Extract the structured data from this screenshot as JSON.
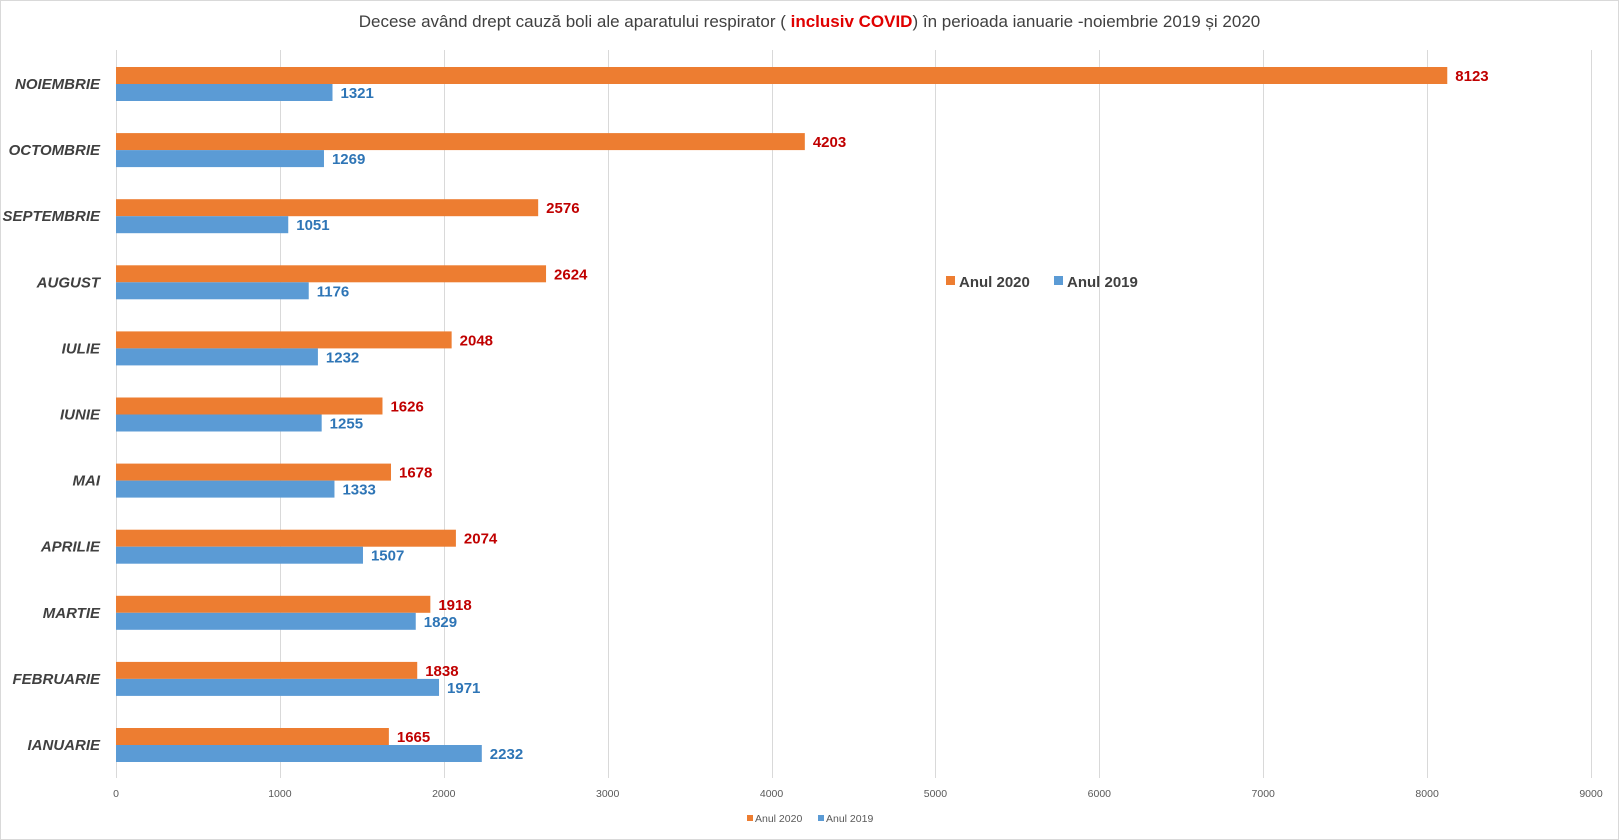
{
  "chart_data": {
    "type": "bar",
    "orientation": "horizontal",
    "title": {
      "prefix": "Decese având drept cauză boli ale aparatului respirator ( ",
      "highlight": "inclusiv COVID",
      "suffix": ") în perioada ianuarie -noiembrie 2019 și 2020"
    },
    "categories": [
      "IANUARIE",
      "FEBRUARIE",
      "MARTIE",
      "APRILIE",
      "MAI",
      "IUNIE",
      "IULIE",
      "AUGUST",
      "SEPTEMBRIE",
      "OCTOMBRIE",
      "NOIEMBRIE"
    ],
    "series": [
      {
        "name": "Anul 2020",
        "color": "#ed7d31",
        "label_color": "#c00000",
        "values": [
          1665,
          1838,
          1918,
          2074,
          1678,
          1626,
          2048,
          2624,
          2576,
          4203,
          8123
        ]
      },
      {
        "name": "Anul 2019",
        "color": "#5b9bd5",
        "label_color": "#2e75b6",
        "values": [
          2232,
          1971,
          1829,
          1507,
          1333,
          1255,
          1232,
          1176,
          1051,
          1269,
          1321
        ]
      }
    ],
    "xlim": [
      0,
      9000
    ],
    "xticks": [
      0,
      1000,
      2000,
      3000,
      4000,
      5000,
      6000,
      7000,
      8000,
      9000
    ],
    "xlabel": "",
    "ylabel": "",
    "grid": true,
    "legend": [
      "top-right-inside",
      "bottom"
    ],
    "data_labels": true
  }
}
